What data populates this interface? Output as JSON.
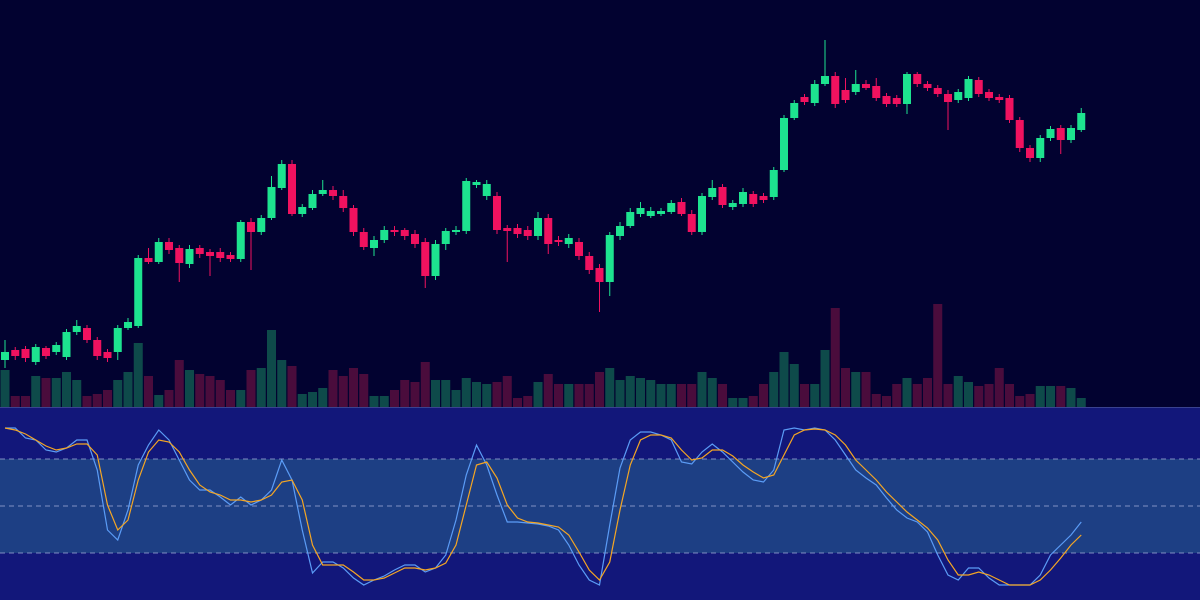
{
  "chart_data": [
    {
      "type": "candlestick",
      "open": [
        240,
        250,
        251,
        238,
        252,
        248,
        243,
        268,
        272,
        260,
        248,
        248,
        272,
        274,
        342,
        338,
        358,
        352,
        336,
        352,
        348,
        348,
        345,
        341,
        378,
        368,
        382,
        412,
        436,
        386,
        392,
        406,
        410,
        404,
        392,
        368,
        352,
        360,
        370,
        370,
        366,
        358,
        324,
        356,
        368,
        369,
        415,
        404,
        404,
        372,
        372,
        370,
        364,
        382,
        360,
        356,
        358,
        344,
        332,
        318,
        364,
        374,
        386,
        384,
        386,
        388,
        398,
        386,
        368,
        403,
        413,
        393,
        396,
        406,
        404,
        403,
        430,
        482,
        503,
        497,
        516,
        524,
        510,
        508,
        516,
        514,
        504,
        502,
        496,
        526,
        516,
        512,
        506,
        500,
        502,
        520,
        508,
        503,
        502,
        480,
        452,
        442,
        462,
        472,
        460,
        470
      ],
      "high": [
        260,
        253,
        254,
        256,
        254,
        258,
        271,
        280,
        275,
        263,
        251,
        275,
        282,
        345,
        352,
        362,
        362,
        355,
        355,
        355,
        351,
        352,
        348,
        380,
        382,
        385,
        424,
        440,
        440,
        396,
        410,
        420,
        414,
        410,
        395,
        372,
        364,
        374,
        374,
        372,
        370,
        362,
        360,
        372,
        374,
        422,
        420,
        420,
        408,
        375,
        376,
        374,
        388,
        386,
        364,
        366,
        362,
        348,
        336,
        368,
        378,
        392,
        398,
        393,
        392,
        400,
        402,
        390,
        407,
        420,
        416,
        400,
        412,
        409,
        407,
        433,
        485,
        500,
        506,
        520,
        560,
        528,
        522,
        530,
        520,
        522,
        507,
        505,
        528,
        528,
        519,
        515,
        510,
        511,
        524,
        523,
        511,
        506,
        505,
        483,
        455,
        465,
        474,
        475,
        475,
        492
      ],
      "low": [
        232,
        240,
        238,
        235,
        241,
        245,
        240,
        265,
        257,
        240,
        238,
        240,
        270,
        272,
        336,
        336,
        346,
        318,
        332,
        342,
        324,
        338,
        338,
        338,
        330,
        365,
        380,
        410,
        384,
        383,
        390,
        404,
        400,
        388,
        364,
        350,
        344,
        357,
        364,
        360,
        352,
        312,
        320,
        350,
        365,
        366,
        412,
        400,
        366,
        338,
        362,
        360,
        360,
        346,
        354,
        352,
        340,
        326,
        288,
        304,
        360,
        372,
        383,
        382,
        384,
        386,
        384,
        365,
        365,
        400,
        392,
        390,
        393,
        393,
        397,
        400,
        428,
        480,
        495,
        494,
        514,
        492,
        497,
        505,
        510,
        499,
        493,
        493,
        486,
        513,
        509,
        503,
        470,
        497,
        499,
        503,
        499,
        497,
        477,
        448,
        438,
        438,
        459,
        446,
        457,
        468
      ],
      "close": [
        248,
        244,
        242,
        253,
        244,
        255,
        268,
        274,
        260,
        244,
        242,
        272,
        278,
        342,
        338,
        358,
        350,
        337,
        351,
        346,
        344,
        342,
        341,
        378,
        368,
        382,
        413,
        436,
        386,
        393,
        406,
        410,
        404,
        392,
        368,
        353,
        360,
        370,
        368,
        364,
        356,
        324,
        356,
        369,
        370,
        419,
        418,
        416,
        370,
        369,
        366,
        364,
        382,
        356,
        358,
        362,
        344,
        330,
        318,
        365,
        374,
        388,
        392,
        389,
        389,
        397,
        386,
        368,
        404,
        412,
        395,
        397,
        408,
        396,
        400,
        430,
        482,
        497,
        498,
        516,
        524,
        496,
        500,
        516,
        512,
        502,
        496,
        496,
        526,
        516,
        512,
        506,
        498,
        508,
        521,
        506,
        502,
        500,
        480,
        452,
        442,
        462,
        471,
        460,
        472,
        487
      ],
      "ylim": [
        193,
        600
      ],
      "up_color": "#1de38f",
      "down_color": "#f0125f"
    },
    {
      "type": "bar",
      "values": [
        37,
        11,
        11,
        31,
        29,
        29,
        35,
        27,
        11,
        13,
        17,
        27,
        35,
        64,
        31,
        12,
        17,
        47,
        37,
        33,
        31,
        27,
        17,
        17,
        37,
        39,
        77,
        47,
        41,
        13,
        15,
        19,
        37,
        31,
        39,
        33,
        11,
        11,
        17,
        27,
        25,
        45,
        27,
        27,
        17,
        29,
        25,
        23,
        25,
        31,
        9,
        11,
        25,
        33,
        23,
        23,
        23,
        23,
        35,
        39,
        27,
        31,
        29,
        27,
        23,
        23,
        23,
        23,
        35,
        29,
        23,
        9,
        9,
        11,
        23,
        35,
        55,
        43,
        23,
        23,
        57,
        99,
        39,
        35,
        35,
        13,
        11,
        23,
        29,
        23,
        29,
        103,
        23,
        31,
        25,
        21,
        23,
        39,
        23,
        11,
        13,
        21,
        21,
        21,
        19,
        9
      ],
      "ylim": [
        0,
        407
      ],
      "up_color": "#0e4a4a",
      "down_color": "#4a0c3c"
    },
    {
      "type": "line",
      "series": [
        {
          "color": "#5b9cf6",
          "values": [
            172,
            172,
            162,
            160,
            150,
            148,
            152,
            160,
            160,
            130,
            70,
            60,
            90,
            135,
            155,
            170,
            160,
            140,
            120,
            110,
            110,
            103,
            95,
            103,
            95,
            100,
            110,
            140,
            120,
            70,
            27,
            38,
            38,
            32,
            22,
            15,
            20,
            24,
            30,
            35,
            35,
            28,
            32,
            45,
            80,
            125,
            155,
            135,
            105,
            78,
            78,
            77,
            76,
            74,
            70,
            55,
            35,
            20,
            15,
            75,
            132,
            160,
            168,
            168,
            165,
            160,
            138,
            136,
            148,
            156,
            148,
            138,
            128,
            120,
            118,
            130,
            170,
            172,
            170,
            172,
            170,
            160,
            145,
            130,
            122,
            115,
            102,
            90,
            82,
            78,
            68,
            45,
            25,
            20,
            32,
            32,
            22,
            15,
            15,
            15,
            15,
            25,
            45,
            55,
            65,
            78
          ]
        },
        {
          "color": "#f5a623",
          "values": [
            172,
            170,
            166,
            160,
            154,
            150,
            152,
            156,
            156,
            145,
            95,
            70,
            80,
            120,
            148,
            160,
            158,
            148,
            130,
            115,
            108,
            105,
            100,
            100,
            98,
            100,
            105,
            118,
            120,
            100,
            55,
            35,
            35,
            35,
            28,
            20,
            20,
            22,
            27,
            32,
            32,
            30,
            32,
            37,
            55,
            95,
            135,
            138,
            122,
            95,
            82,
            78,
            77,
            75,
            73,
            65,
            48,
            30,
            20,
            38,
            90,
            135,
            160,
            165,
            165,
            162,
            150,
            140,
            142,
            150,
            150,
            144,
            135,
            128,
            122,
            125,
            145,
            165,
            170,
            171,
            170,
            165,
            155,
            140,
            130,
            120,
            108,
            98,
            88,
            80,
            72,
            60,
            40,
            25,
            25,
            28,
            25,
            20,
            15,
            15,
            15,
            20,
            30,
            42,
            55,
            65
          ]
        }
      ],
      "ylim": [
        0,
        193
      ],
      "bands": [
        47,
        141
      ],
      "midline": 94,
      "band_color": "#1d3f84",
      "background": "#12177a"
    }
  ]
}
